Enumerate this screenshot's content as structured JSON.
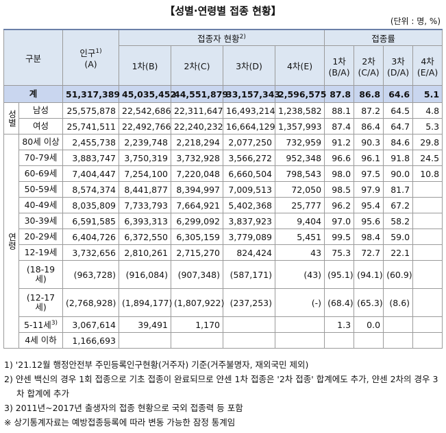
{
  "title": "【성별·연령별 접종 현황】",
  "unit": "(단위 : 명, %)",
  "header": {
    "category": "구분",
    "population": {
      "label": "인구",
      "note": "1)",
      "sub": "(A)"
    },
    "vaccinated": {
      "label": "접종자 현황",
      "note": "2)"
    },
    "rate": "접종률",
    "vaccinated_cols": [
      "1차(B)",
      "2차(C)",
      "3차(D)",
      "4차(E)"
    ],
    "rate_cols": [
      {
        "label": "1차",
        "sub": "(B/A)"
      },
      {
        "label": "2차",
        "sub": "(C/A)"
      },
      {
        "label": "3차",
        "sub": "(D/A)"
      },
      {
        "label": "4차",
        "sub": "(E/A)"
      }
    ]
  },
  "total": {
    "label": "계",
    "cells": [
      "51,317,389",
      "45,035,452",
      "44,551,879",
      "33,157,343",
      "2,596,575",
      "87.8",
      "86.8",
      "64.6",
      "5.1"
    ]
  },
  "groups": [
    {
      "label": "성별",
      "rows": [
        {
          "label": "남성",
          "cells": [
            "25,575,878",
            "22,542,686",
            "22,311,647",
            "16,493,214",
            "1,238,582",
            "88.1",
            "87.2",
            "64.5",
            "4.8"
          ]
        },
        {
          "label": "여성",
          "cells": [
            "25,741,511",
            "22,492,766",
            "22,240,232",
            "16,664,129",
            "1,357,993",
            "87.4",
            "86.4",
            "64.7",
            "5.3"
          ]
        }
      ]
    },
    {
      "label": "연령",
      "rows": [
        {
          "label": "80세 이상",
          "cells": [
            "2,455,738",
            "2,239,748",
            "2,218,294",
            "2,077,250",
            "732,959",
            "91.2",
            "90.3",
            "84.6",
            "29.8"
          ]
        },
        {
          "label": "70-79세",
          "cells": [
            "3,883,747",
            "3,750,319",
            "3,732,928",
            "3,566,272",
            "952,348",
            "96.6",
            "96.1",
            "91.8",
            "24.5"
          ]
        },
        {
          "label": "60-69세",
          "cells": [
            "7,404,447",
            "7,254,100",
            "7,220,048",
            "6,660,504",
            "798,543",
            "98.0",
            "97.5",
            "90.0",
            "10.8"
          ]
        },
        {
          "label": "50-59세",
          "cells": [
            "8,574,374",
            "8,441,877",
            "8,394,997",
            "7,009,513",
            "72,050",
            "98.5",
            "97.9",
            "81.7",
            null
          ]
        },
        {
          "label": "40-49세",
          "cells": [
            "8,035,809",
            "7,733,793",
            "7,664,921",
            "5,402,368",
            "25,777",
            "96.2",
            "95.4",
            "67.2",
            null
          ]
        },
        {
          "label": "30-39세",
          "cells": [
            "6,591,585",
            "6,393,313",
            "6,299,092",
            "3,837,923",
            "9,404",
            "97.0",
            "95.6",
            "58.2",
            null
          ]
        },
        {
          "label": "20-29세",
          "cells": [
            "6,404,726",
            "6,372,550",
            "6,305,159",
            "3,779,089",
            "5,451",
            "99.5",
            "98.4",
            "59.0",
            null
          ]
        },
        {
          "label": "12-19세",
          "cells": [
            "3,732,656",
            "2,810,261",
            "2,715,270",
            "824,424",
            "43",
            "75.3",
            "72.7",
            "22.1",
            null
          ]
        },
        {
          "label": "(18-19세)",
          "cells": [
            "(963,728)",
            "(916,084)",
            "(907,348)",
            "(587,171)",
            "(43)",
            "(95.1)",
            "(94.1)",
            "(60.9)",
            null
          ]
        },
        {
          "label": "(12-17세)",
          "cells": [
            "(2,768,928)",
            "(1,894,177)",
            "(1,807,922)",
            "(237,253)",
            "(-)",
            "(68.4)",
            "(65.3)",
            "(8.6)",
            null
          ]
        },
        {
          "label": "5-11세",
          "note": "3)",
          "cells": [
            "3,067,614",
            "39,491",
            "1,170",
            null,
            null,
            "1.3",
            "0.0",
            null,
            null
          ]
        },
        {
          "label": "4세 이하",
          "cells": [
            "1,166,693",
            null,
            null,
            null,
            null,
            null,
            null,
            null,
            null
          ]
        }
      ]
    }
  ],
  "footnotes": [
    "1) '21.12월 행정안전부 주민등록인구현황(거주자) 기준(거주불명자, 재외국민 제외)",
    "2) 얀센 백신의 경우 1회 접종으로 기초 접종이 완료되므로 얀센 1차 접종은 '2차 접종' 합계에도 추가, 얀센 2차의 경우 3차 합계에 추가",
    "3) 2011년~2017년 출생자의 접종 현황으로 국외 접종력 등 포함",
    "※ 상기통계자료는 예방접종등록에 따라 변동 가능한 잠정 통계임"
  ]
}
